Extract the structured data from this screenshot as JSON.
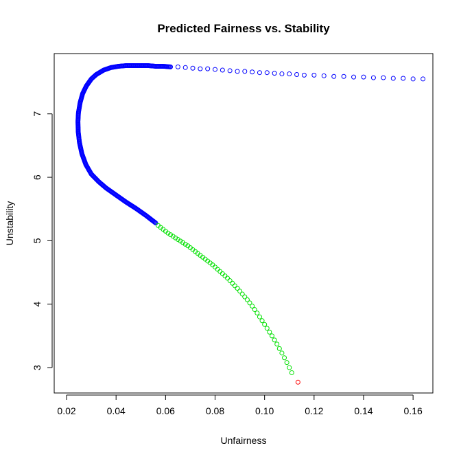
{
  "chart_data": {
    "type": "scatter",
    "title": "Predicted Fairness vs. Stability",
    "xlabel": "Unfairness",
    "ylabel": "Unstability",
    "xlim": [
      0.015,
      0.168
    ],
    "ylim": [
      2.6,
      7.95
    ],
    "xticks": [
      0.02,
      0.04,
      0.06,
      0.08,
      0.1,
      0.12,
      0.14,
      0.16
    ],
    "xtick_labels": [
      "0.02",
      "0.04",
      "0.06",
      "0.08",
      "0.10",
      "0.12",
      "0.14",
      "0.16"
    ],
    "yticks": [
      3,
      4,
      5,
      6,
      7
    ],
    "ytick_labels": [
      "3",
      "4",
      "5",
      "6",
      "7"
    ],
    "grid": false,
    "series": [
      {
        "name": "blue",
        "color": "#0000ff",
        "points": [
          [
            0.164,
            7.55
          ],
          [
            0.16,
            7.55
          ],
          [
            0.156,
            7.56
          ],
          [
            0.152,
            7.56
          ],
          [
            0.148,
            7.57
          ],
          [
            0.144,
            7.57
          ],
          [
            0.14,
            7.58
          ],
          [
            0.136,
            7.58
          ],
          [
            0.132,
            7.59
          ],
          [
            0.128,
            7.59
          ],
          [
            0.124,
            7.6
          ],
          [
            0.12,
            7.61
          ],
          [
            0.116,
            7.61
          ],
          [
            0.113,
            7.62
          ],
          [
            0.11,
            7.63
          ],
          [
            0.107,
            7.63
          ],
          [
            0.104,
            7.64
          ],
          [
            0.101,
            7.65
          ],
          [
            0.098,
            7.65
          ],
          [
            0.095,
            7.66
          ],
          [
            0.092,
            7.67
          ],
          [
            0.089,
            7.67
          ],
          [
            0.086,
            7.68
          ],
          [
            0.083,
            7.69
          ],
          [
            0.08,
            7.7
          ],
          [
            0.077,
            7.71
          ],
          [
            0.074,
            7.71
          ],
          [
            0.071,
            7.72
          ],
          [
            0.068,
            7.73
          ],
          [
            0.065,
            7.74
          ],
          [
            0.062,
            7.74
          ],
          [
            0.059,
            7.75
          ],
          [
            0.056,
            7.75
          ],
          [
            0.053,
            7.76
          ],
          [
            0.05,
            7.76
          ],
          [
            0.047,
            7.76
          ],
          [
            0.044,
            7.76
          ],
          [
            0.041,
            7.75
          ],
          [
            0.038,
            7.73
          ],
          [
            0.035,
            7.69
          ],
          [
            0.032,
            7.62
          ],
          [
            0.03,
            7.55
          ],
          [
            0.028,
            7.44
          ],
          [
            0.0265,
            7.32
          ],
          [
            0.0255,
            7.18
          ],
          [
            0.0248,
            7.02
          ],
          [
            0.0246,
            6.88
          ],
          [
            0.0247,
            6.72
          ],
          [
            0.0252,
            6.55
          ],
          [
            0.0262,
            6.37
          ],
          [
            0.0278,
            6.2
          ],
          [
            0.03,
            6.05
          ],
          [
            0.033,
            5.93
          ],
          [
            0.036,
            5.83
          ],
          [
            0.04,
            5.72
          ],
          [
            0.044,
            5.61
          ],
          [
            0.048,
            5.51
          ],
          [
            0.052,
            5.4
          ],
          [
            0.056,
            5.28
          ]
        ]
      },
      {
        "name": "green",
        "color": "#00e000",
        "points": [
          [
            0.057,
            5.24
          ],
          [
            0.059,
            5.18
          ],
          [
            0.061,
            5.12
          ],
          [
            0.063,
            5.07
          ],
          [
            0.065,
            5.02
          ],
          [
            0.067,
            4.97
          ],
          [
            0.069,
            4.92
          ],
          [
            0.071,
            4.86
          ],
          [
            0.073,
            4.8
          ],
          [
            0.075,
            4.74
          ],
          [
            0.077,
            4.68
          ],
          [
            0.079,
            4.62
          ],
          [
            0.081,
            4.55
          ],
          [
            0.083,
            4.48
          ],
          [
            0.085,
            4.41
          ],
          [
            0.087,
            4.33
          ],
          [
            0.089,
            4.25
          ],
          [
            0.091,
            4.16
          ],
          [
            0.093,
            4.07
          ],
          [
            0.095,
            3.97
          ],
          [
            0.097,
            3.86
          ],
          [
            0.099,
            3.74
          ],
          [
            0.101,
            3.62
          ],
          [
            0.103,
            3.5
          ],
          [
            0.105,
            3.37
          ],
          [
            0.107,
            3.23
          ],
          [
            0.109,
            3.08
          ],
          [
            0.111,
            2.92
          ]
        ]
      },
      {
        "name": "red",
        "color": "#ff0000",
        "points": [
          [
            0.1135,
            2.77
          ]
        ]
      }
    ]
  }
}
